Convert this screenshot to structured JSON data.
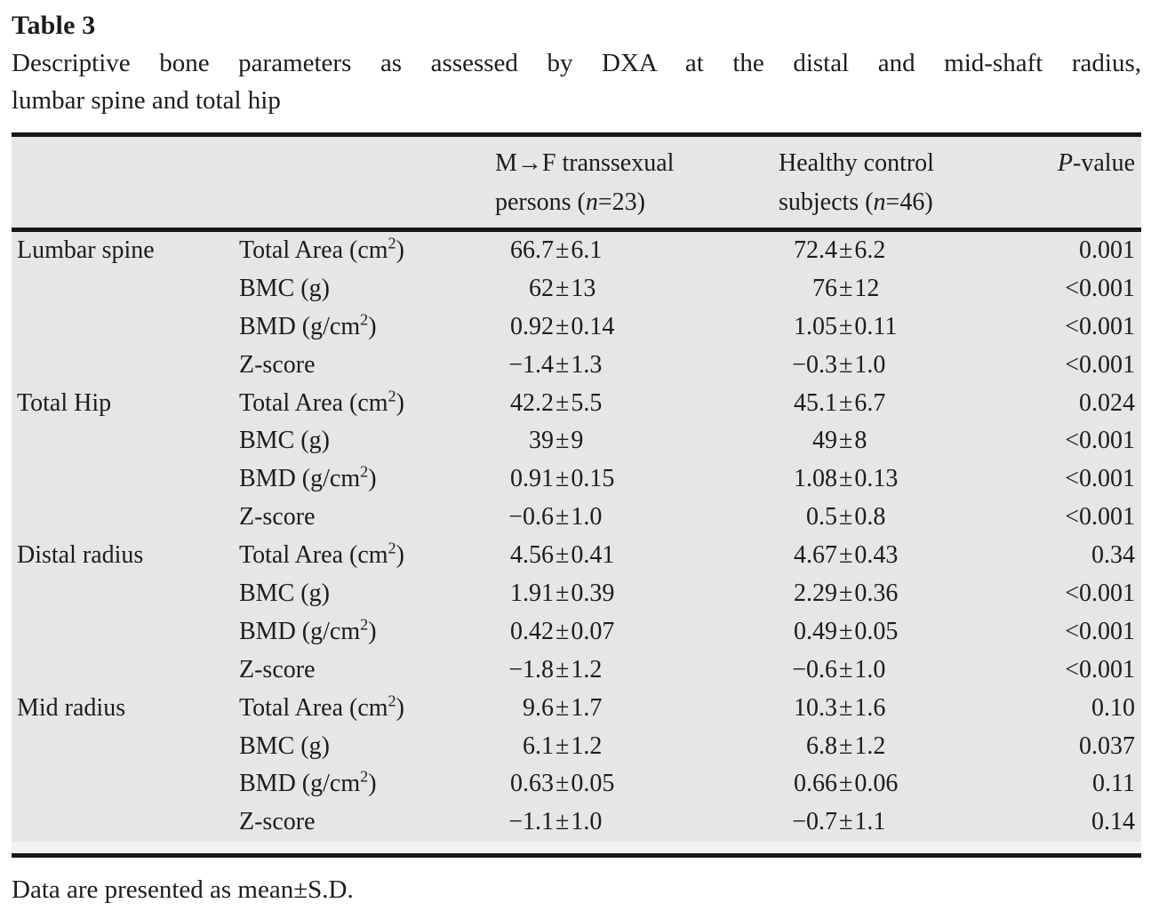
{
  "page": {
    "title": "Table 3",
    "caption_line1": "Descriptive bone parameters as assessed by DXA at the distal and mid-shaft radius,",
    "caption_line2": "lumbar spine and total hip",
    "footnote": "Data are presented as mean±S.D."
  },
  "colors": {
    "table_background": "#e6e6e6",
    "rule": "#161616",
    "text": "#1c1c1c"
  },
  "header": {
    "tf": {
      "line1": "M→F transsexual",
      "line2_pre": "persons (",
      "n": "n",
      "line2_post": "=23)"
    },
    "hc": {
      "line1": "Healthy control",
      "line2_pre": "subjects (",
      "n": "n",
      "line2_post": "=46)"
    },
    "p": {
      "italic": "P",
      "rest": "-value"
    }
  },
  "rows": [
    {
      "site": "Lumbar spine",
      "param": "Total Area (cm",
      "sup": "2",
      "param_end": ")",
      "tf_mean": "66.7",
      "tf_sd": "6.1",
      "hc_mean": "72.4",
      "hc_sd": "6.2",
      "p": "0.001"
    },
    {
      "param": "BMC (g)",
      "tf_mean": "62",
      "tf_sd": "13",
      "hc_mean": "76",
      "hc_sd": "12",
      "p": "<0.001"
    },
    {
      "param": "BMD (g/cm",
      "sup": "2",
      "param_end": ")",
      "tf_mean": "0.92",
      "tf_sd": "0.14",
      "hc_mean": "1.05",
      "hc_sd": "0.11",
      "p": "<0.001"
    },
    {
      "param": "Z-score",
      "tf_mean": "−1.4",
      "tf_sd": "1.3",
      "hc_mean": "−0.3",
      "hc_sd": "1.0",
      "p": "<0.001"
    },
    {
      "site": "Total Hip",
      "param": "Total Area (cm",
      "sup": "2",
      "param_end": ")",
      "tf_mean": "42.2",
      "tf_sd": "5.5",
      "hc_mean": "45.1",
      "hc_sd": "6.7",
      "p": "0.024"
    },
    {
      "param": "BMC (g)",
      "tf_mean": "39",
      "tf_sd": "9",
      "hc_mean": "49",
      "hc_sd": "8",
      "p": "<0.001"
    },
    {
      "param": "BMD (g/cm",
      "sup": "2",
      "param_end": ")",
      "tf_mean": "0.91",
      "tf_sd": "0.15",
      "hc_mean": "1.08",
      "hc_sd": "0.13",
      "p": "<0.001"
    },
    {
      "param": "Z-score",
      "tf_mean": "−0.6",
      "tf_sd": "1.0",
      "hc_mean": "0.5",
      "hc_sd": "0.8",
      "p": "<0.001"
    },
    {
      "site": "Distal radius",
      "param": "Total Area (cm",
      "sup": "2",
      "param_end": ")",
      "tf_mean": "4.56",
      "tf_sd": "0.41",
      "hc_mean": "4.67",
      "hc_sd": "0.43",
      "p": "0.34"
    },
    {
      "param": "BMC (g)",
      "tf_mean": "1.91",
      "tf_sd": "0.39",
      "hc_mean": "2.29",
      "hc_sd": "0.36",
      "p": "<0.001"
    },
    {
      "param": "BMD (g/cm",
      "sup": "2",
      "param_end": ")",
      "tf_mean": "0.42",
      "tf_sd": "0.07",
      "hc_mean": "0.49",
      "hc_sd": "0.05",
      "p": "<0.001"
    },
    {
      "param": "Z-score",
      "tf_mean": "−1.8",
      "tf_sd": "1.2",
      "hc_mean": "−0.6",
      "hc_sd": "1.0",
      "p": "<0.001"
    },
    {
      "site": "Mid radius",
      "param": "Total Area (cm",
      "sup": "2",
      "param_end": ")",
      "tf_mean": "9.6",
      "tf_sd": "1.7",
      "hc_mean": "10.3",
      "hc_sd": "1.6",
      "p": "0.10"
    },
    {
      "param": "BMC (g)",
      "tf_mean": "6.1",
      "tf_sd": "1.2",
      "hc_mean": "6.8",
      "hc_sd": "1.2",
      "p": "0.037"
    },
    {
      "param": "BMD (g/cm",
      "sup": "2",
      "param_end": ")",
      "tf_mean": "0.63",
      "tf_sd": "0.05",
      "hc_mean": "0.66",
      "hc_sd": "0.06",
      "p": "0.11"
    },
    {
      "param": "Z-score",
      "tf_mean": "−1.1",
      "tf_sd": "1.0",
      "hc_mean": "−0.7",
      "hc_sd": "1.1",
      "p": "0.14"
    }
  ]
}
